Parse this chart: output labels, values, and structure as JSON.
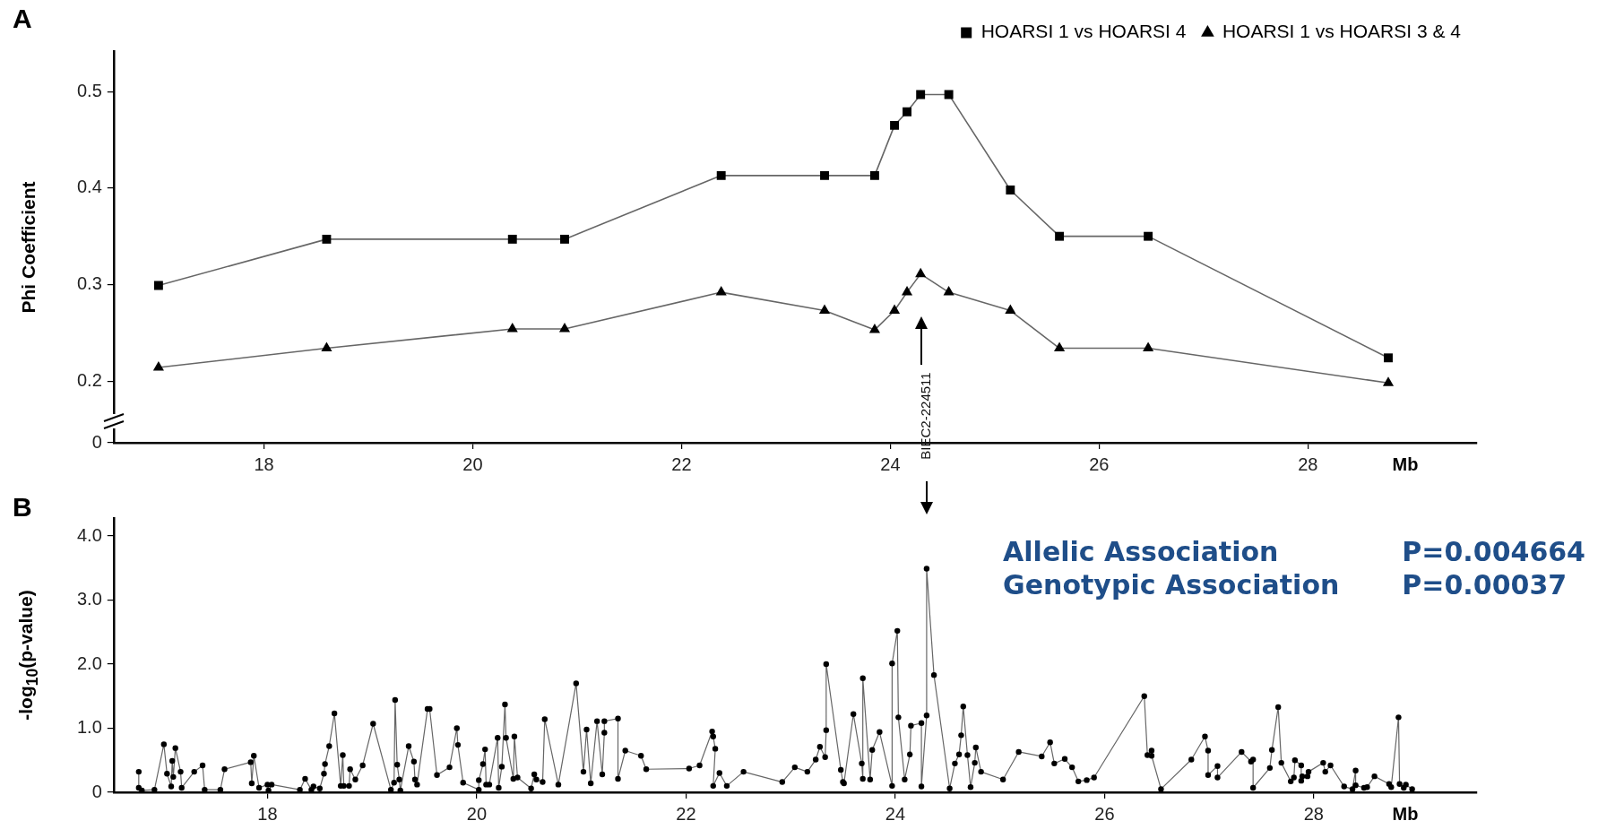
{
  "chart_data": [
    {
      "type": "line",
      "title": "A",
      "ylabel": "Phi Coefficient",
      "xlabel": "Mb",
      "legend": "top right",
      "x": [
        16.99,
        18.6,
        20.38,
        20.88,
        22.38,
        23.37,
        23.85,
        24.04,
        24.16,
        24.29,
        24.56,
        25.15,
        25.62,
        26.47,
        28.77
      ],
      "series": [
        {
          "name": "HOARSI 1 vs HOARSI 4",
          "color": "#000000",
          "marker": "square",
          "values": [
            0.299,
            0.347,
            0.347,
            0.347,
            0.413,
            0.413,
            0.413,
            0.465,
            0.479,
            0.497,
            0.497,
            0.398,
            0.35,
            0.35,
            0.224
          ]
        },
        {
          "name": "HOARSI 1 vs HOARSI 3 & 4",
          "color": "#000000",
          "marker": "triangle",
          "values": [
            0.214,
            0.234,
            0.254,
            0.254,
            0.292,
            0.273,
            0.253,
            0.273,
            0.292,
            0.311,
            0.292,
            0.273,
            0.234,
            0.234,
            0.198
          ]
        }
      ],
      "xlim": [
        16.56,
        29.62
      ],
      "xticks": [
        18,
        20,
        22,
        24,
        26,
        28
      ],
      "ylim": [
        0.136,
        0.542
      ],
      "yticks": [
        {
          "value": 0.136,
          "label": "0"
        },
        0.2,
        0.3,
        0.4,
        0.5
      ],
      "annotations": [
        {
          "text": "BIEC2-224511",
          "x": 24.3
        }
      ]
    },
    {
      "type": "line",
      "title": "B",
      "ylabel": "-log$_{10}$(p-value)",
      "xlabel": "Mb",
      "marker": "circle",
      "x": [
        16.77,
        16.77,
        16.8,
        16.92,
        17.01,
        17.04,
        17.08,
        17.09,
        17.1,
        17.12,
        17.17,
        17.18,
        17.3,
        17.38,
        17.4,
        17.55,
        17.59,
        17.84,
        17.85,
        17.87,
        17.92,
        18.0,
        18.01,
        18.04,
        18.31,
        18.36,
        18.42,
        18.44,
        18.5,
        18.54,
        18.55,
        18.59,
        18.64,
        18.7,
        18.72,
        18.73,
        18.78,
        18.79,
        18.84,
        18.91,
        19.01,
        19.18,
        19.21,
        19.22,
        19.24,
        19.26,
        19.27,
        19.35,
        19.4,
        19.41,
        19.43,
        19.53,
        19.55,
        19.62,
        19.74,
        19.81,
        19.82,
        19.87,
        20.02,
        20.02,
        20.06,
        20.08,
        20.09,
        20.12,
        20.2,
        20.21,
        20.24,
        20.27,
        20.28,
        20.35,
        20.36,
        20.39,
        20.52,
        20.55,
        20.57,
        20.63,
        20.65,
        20.78,
        20.95,
        21.02,
        21.05,
        21.09,
        21.15,
        21.2,
        21.22,
        21.22,
        21.35,
        21.35,
        21.42,
        21.57,
        21.62,
        22.03,
        22.13,
        22.25,
        22.26,
        22.28,
        22.26,
        22.32,
        22.39,
        22.55,
        22.92,
        23.04,
        23.16,
        23.24,
        23.28,
        23.33,
        23.34,
        23.34,
        23.48,
        23.5,
        23.51,
        23.6,
        23.68,
        23.69,
        23.69,
        23.76,
        23.78,
        23.85,
        23.97,
        23.97,
        24.02,
        24.03,
        24.09,
        24.14,
        24.15,
        24.25,
        24.25,
        24.3,
        24.3,
        24.37,
        24.52,
        24.57,
        24.61,
        24.63,
        24.65,
        24.69,
        24.72,
        24.76,
        24.77,
        24.82,
        25.03,
        25.18,
        25.4,
        25.48,
        25.52,
        25.62,
        25.69,
        25.75,
        25.83,
        25.9,
        26.38,
        26.41,
        26.45,
        26.45,
        26.54,
        26.83,
        26.96,
        26.99,
        26.99,
        27.08,
        27.08,
        27.31,
        27.4,
        27.42,
        27.42,
        27.58,
        27.6,
        27.66,
        27.69,
        27.78,
        27.81,
        27.82,
        27.88,
        27.88,
        27.89,
        27.94,
        27.95,
        28.09,
        28.11,
        28.16,
        28.29,
        28.37,
        28.4,
        28.4,
        28.48,
        28.51,
        28.58,
        28.72,
        28.74,
        28.81,
        28.82,
        28.86,
        28.88,
        28.94
      ],
      "series": [
        {
          "color": "#000000",
          "values": [
            0.32,
            0.07,
            0.03,
            0.04,
            0.75,
            0.29,
            0.09,
            0.49,
            0.24,
            0.69,
            0.32,
            0.07,
            0.32,
            0.42,
            0.04,
            0.04,
            0.36,
            0.47,
            0.14,
            0.57,
            0.07,
            0.12,
            0.03,
            0.12,
            0.04,
            0.21,
            0.04,
            0.09,
            0.06,
            0.29,
            0.44,
            0.72,
            1.23,
            0.1,
            0.58,
            0.1,
            0.1,
            0.36,
            0.2,
            0.42,
            1.07,
            0.04,
            0.15,
            1.44,
            0.43,
            0.2,
            0.03,
            0.72,
            0.48,
            0.2,
            0.12,
            1.3,
            1.3,
            0.27,
            0.39,
            1.0,
            0.74,
            0.15,
            0.04,
            0.19,
            0.44,
            0.67,
            0.12,
            0.12,
            0.85,
            0.07,
            0.4,
            1.37,
            0.85,
            0.21,
            0.87,
            0.23,
            0.06,
            0.28,
            0.2,
            0.16,
            1.14,
            0.12,
            1.7,
            0.32,
            0.98,
            0.14,
            1.11,
            0.28,
            0.93,
            1.11,
            1.15,
            0.21,
            0.65,
            0.57,
            0.36,
            0.37,
            0.42,
            0.95,
            0.87,
            0.68,
            0.1,
            0.3,
            0.1,
            0.32,
            0.16,
            0.39,
            0.32,
            0.51,
            0.71,
            0.55,
            0.97,
            2.0,
            0.35,
            0.16,
            0.14,
            1.22,
            0.45,
            0.21,
            1.78,
            0.2,
            0.66,
            0.94,
            0.1,
            2.01,
            2.52,
            1.17,
            0.2,
            0.59,
            1.04,
            1.08,
            0.09,
            1.2,
            3.49,
            1.83,
            0.06,
            0.45,
            0.59,
            0.89,
            1.34,
            0.58,
            0.08,
            0.46,
            0.7,
            0.32,
            0.2,
            0.63,
            0.56,
            0.78,
            0.45,
            0.52,
            0.39,
            0.17,
            0.19,
            0.23,
            1.5,
            0.58,
            0.65,
            0.57,
            0.05,
            0.51,
            0.87,
            0.65,
            0.27,
            0.41,
            0.23,
            0.63,
            0.48,
            0.51,
            0.07,
            0.38,
            0.66,
            1.33,
            0.46,
            0.17,
            0.23,
            0.5,
            0.42,
            0.18,
            0.25,
            0.25,
            0.32,
            0.46,
            0.32,
            0.42,
            0.09,
            0.05,
            0.34,
            0.11,
            0.07,
            0.08,
            0.25,
            0.13,
            0.08,
            1.17,
            0.13,
            0.07,
            0.12,
            0.05
          ]
        }
      ],
      "xlim": [
        16.53,
        29.56
      ],
      "xticks": [
        18,
        20,
        22,
        24,
        26,
        28
      ],
      "ylim": [
        0,
        4.28
      ],
      "yticks": [
        0,
        {
          "value": 1,
          "label": "1.0"
        },
        {
          "value": 2,
          "label": "2.0"
        },
        {
          "value": 3,
          "label": "3.0"
        },
        {
          "value": 4,
          "label": "4.0"
        }
      ],
      "annotations": [
        "Allelic Association",
        "P=0.004664",
        "Genotypic Association",
        "P=0.00037"
      ]
    }
  ]
}
